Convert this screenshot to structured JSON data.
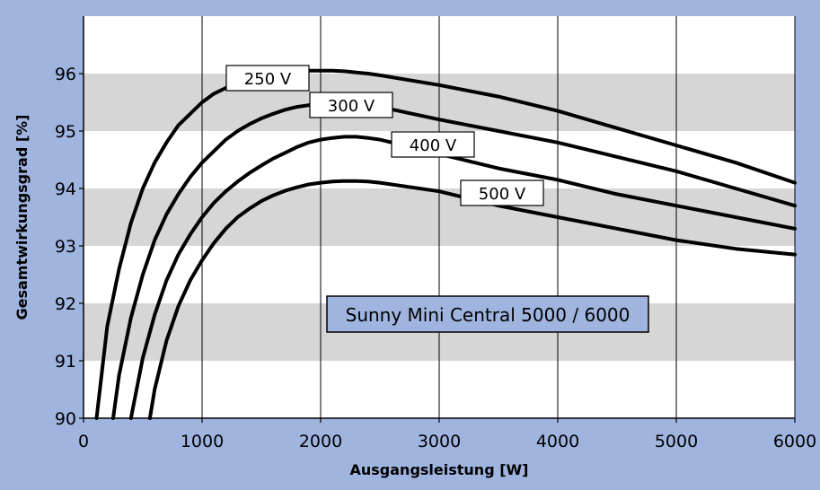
{
  "chart_data": {
    "type": "line",
    "xlabel": "Ausgangsleistung [W]",
    "ylabel": "Gesamtwirkungsgrad [%]",
    "xlim": [
      0,
      6000
    ],
    "ylim": [
      90,
      97
    ],
    "x_ticks": [
      0,
      1000,
      2000,
      3000,
      4000,
      5000,
      6000
    ],
    "y_ticks": [
      90,
      91,
      92,
      93,
      94,
      95,
      96
    ],
    "x_tick_labels": [
      "0",
      "1000",
      "2000",
      "3000",
      "4000",
      "5000",
      "6000"
    ],
    "y_tick_labels": [
      "90",
      "91",
      "92",
      "93",
      "94",
      "95",
      "96"
    ],
    "grid": "vertical lines, alternating grey horizontal bands",
    "annotation": "Sunny Mini Central 5000 / 6000",
    "series": [
      {
        "name": "250 V",
        "x": [
          110,
          200,
          300,
          400,
          500,
          600,
          700,
          800,
          900,
          1000,
          1100,
          1200,
          1300,
          1400,
          1500,
          1600,
          1700,
          1800,
          1900,
          2000,
          2100,
          2200,
          2300,
          2400,
          2500,
          3000,
          3500,
          4000,
          4500,
          5000,
          5500,
          6000
        ],
        "y": [
          90.0,
          91.6,
          92.6,
          93.4,
          94.0,
          94.45,
          94.8,
          95.1,
          95.3,
          95.5,
          95.65,
          95.75,
          95.85,
          95.93,
          95.98,
          96.01,
          96.03,
          96.05,
          96.05,
          96.05,
          96.05,
          96.04,
          96.02,
          96.0,
          95.97,
          95.8,
          95.6,
          95.35,
          95.05,
          94.75,
          94.45,
          94.1
        ]
      },
      {
        "name": "300 V",
        "x": [
          250,
          300,
          400,
          500,
          600,
          700,
          800,
          900,
          1000,
          1100,
          1200,
          1300,
          1400,
          1500,
          1600,
          1700,
          1800,
          1900,
          2000,
          2100,
          2200,
          2300,
          2400,
          2500,
          3000,
          3500,
          4000,
          4500,
          5000,
          5500,
          6000
        ],
        "y": [
          90.0,
          90.75,
          91.75,
          92.5,
          93.1,
          93.55,
          93.9,
          94.2,
          94.45,
          94.65,
          94.85,
          95.0,
          95.12,
          95.22,
          95.3,
          95.37,
          95.42,
          95.45,
          95.47,
          95.48,
          95.48,
          95.47,
          95.45,
          95.42,
          95.2,
          95.0,
          94.8,
          94.55,
          94.3,
          94.0,
          93.7
        ]
      },
      {
        "name": "400 V",
        "x": [
          400,
          500,
          600,
          700,
          800,
          900,
          1000,
          1100,
          1200,
          1300,
          1400,
          1500,
          1600,
          1700,
          1800,
          1900,
          2000,
          2100,
          2200,
          2300,
          2400,
          2500,
          3000,
          3500,
          4000,
          4500,
          5000,
          5500,
          6000
        ],
        "y": [
          90.0,
          91.05,
          91.8,
          92.4,
          92.85,
          93.2,
          93.5,
          93.75,
          93.95,
          94.12,
          94.27,
          94.4,
          94.52,
          94.62,
          94.72,
          94.8,
          94.85,
          94.88,
          94.9,
          94.9,
          94.88,
          94.85,
          94.6,
          94.35,
          94.15,
          93.9,
          93.7,
          93.5,
          93.3
        ]
      },
      {
        "name": "500 V",
        "x": [
          560,
          600,
          700,
          800,
          900,
          1000,
          1100,
          1200,
          1300,
          1400,
          1500,
          1600,
          1700,
          1800,
          1900,
          2000,
          2100,
          2200,
          2300,
          2400,
          2500,
          3000,
          3500,
          4000,
          4500,
          5000,
          5500,
          6000
        ],
        "y": [
          90.0,
          90.5,
          91.35,
          91.95,
          92.4,
          92.75,
          93.05,
          93.3,
          93.5,
          93.65,
          93.78,
          93.88,
          93.96,
          94.02,
          94.07,
          94.1,
          94.12,
          94.13,
          94.13,
          94.12,
          94.1,
          93.95,
          93.7,
          93.5,
          93.3,
          93.1,
          92.95,
          92.85
        ]
      }
    ]
  }
}
